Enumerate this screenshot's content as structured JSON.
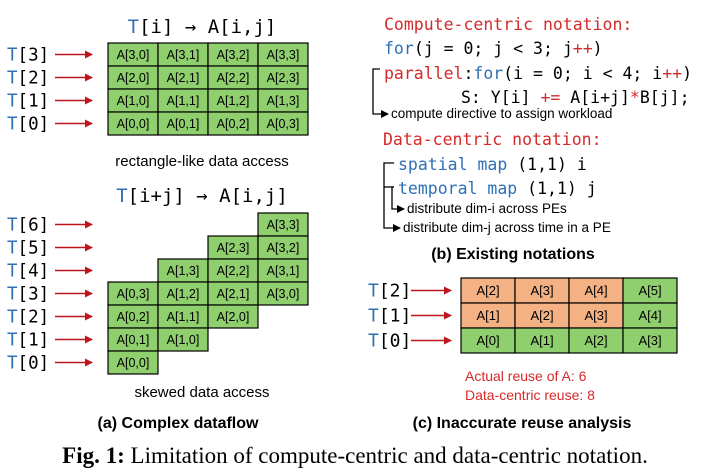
{
  "colors": {
    "grid_green": "#8fcf6e",
    "grid_orange": "#f4b183",
    "arrow_red": "#c0141c",
    "keyword_blue": "#2f6fb5",
    "heading_red": "#d42a2a",
    "text": "#000000"
  },
  "panel_a": {
    "top_title": {
      "t": "T",
      "rest": "[i] → A[i,j]"
    },
    "top_thread_labels": [
      "T[3]",
      "T[2]",
      "T[1]",
      "T[0]"
    ],
    "top_grid": [
      [
        "A[3,0]",
        "A[3,1]",
        "A[3,2]",
        "A[3,3]"
      ],
      [
        "A[2,0]",
        "A[2,1]",
        "A[2,2]",
        "A[2,3]"
      ],
      [
        "A[1,0]",
        "A[1,1]",
        "A[1,2]",
        "A[1,3]"
      ],
      [
        "A[0,0]",
        "A[0,1]",
        "A[0,2]",
        "A[0,3]"
      ]
    ],
    "top_caption": "rectangle-like data access",
    "bottom_title": {
      "t": "T",
      "rest": "[i+j] → A[i,j]"
    },
    "bottom_thread_labels": [
      "T[6]",
      "T[5]",
      "T[4]",
      "T[3]",
      "T[2]",
      "T[1]",
      "T[0]"
    ],
    "bottom_rows": [
      {
        "start": 3,
        "cells": [
          "A[3,3]"
        ]
      },
      {
        "start": 2,
        "cells": [
          "A[2,3]",
          "A[3,2]"
        ]
      },
      {
        "start": 1,
        "cells": [
          "A[1,3]",
          "A[2,2]",
          "A[3,1]"
        ]
      },
      {
        "start": 0,
        "cells": [
          "A[0,3]",
          "A[1,2]",
          "A[2,1]",
          "A[3,0]"
        ]
      },
      {
        "start": 0,
        "cells": [
          "A[0,2]",
          "A[1,1]",
          "A[2,0]"
        ]
      },
      {
        "start": 0,
        "cells": [
          "A[0,1]",
          "A[1,0]"
        ]
      },
      {
        "start": 0,
        "cells": [
          "A[0,0]"
        ]
      }
    ],
    "bottom_caption": "skewed data access",
    "label": "(a) Complex dataflow"
  },
  "panel_b": {
    "compute_heading": "Compute-centric notation:",
    "code_line1": {
      "kw": "for",
      "rest": "(j = 0; j < 3; j",
      "op": "++",
      "close": ")"
    },
    "code_line2": {
      "kw": "parallel",
      "colon": ":",
      "kw2": "for",
      "rest": "(i = 0; i < 4; i",
      "op": "++",
      "close": ")"
    },
    "code_line3": {
      "pre": "S: Y[i] ",
      "op1": "+=",
      "mid": " A[i+j]",
      "op2": "*",
      "post": "B[j];"
    },
    "compute_note": "compute directive to assign workload",
    "data_heading": "Data-centric notation:",
    "spatial_line": {
      "kw": "spatial map",
      "rest": " (1,1) i"
    },
    "temporal_line": {
      "kw": "temporal map",
      "rest": " (1,1) j"
    },
    "note_spatial": "distribute dim-i across PEs",
    "note_temporal": "distribute dim-j across time in a PE",
    "label": "(b) Existing notations"
  },
  "panel_c": {
    "thread_labels": [
      "T[2]",
      "T[1]",
      "T[0]"
    ],
    "grid": [
      {
        "cells": [
          "A[2]",
          "A[3]",
          "A[4]",
          "A[5]"
        ],
        "orange": [
          true,
          true,
          true,
          false
        ]
      },
      {
        "cells": [
          "A[1]",
          "A[2]",
          "A[3]",
          "A[4]"
        ],
        "orange": [
          true,
          true,
          true,
          false
        ]
      },
      {
        "cells": [
          "A[0]",
          "A[1]",
          "A[2]",
          "A[3]"
        ],
        "orange": [
          false,
          false,
          false,
          false
        ]
      }
    ],
    "actual_reuse": "Actual reuse of A: 6",
    "datacentric_reuse": "Data-centric reuse: 8",
    "label": "(c) Inaccurate reuse analysis"
  },
  "caption": {
    "prefix": "Fig. 1:",
    "text": " Limitation of compute-centric and data-centric notation."
  }
}
